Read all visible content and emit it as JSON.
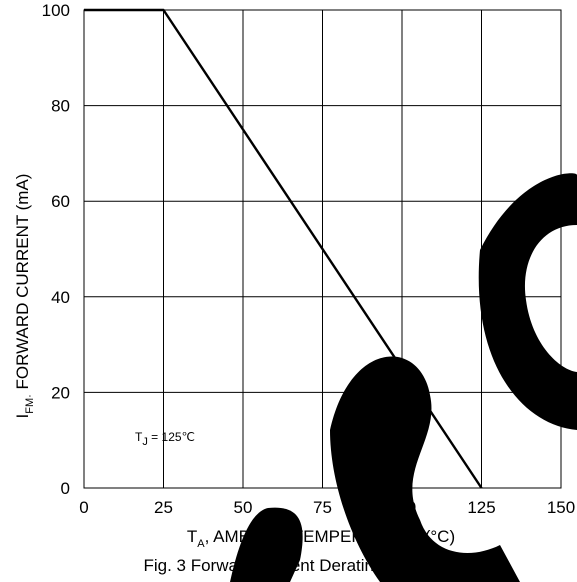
{
  "chart_data": {
    "type": "line",
    "caption": "Fig. 3  Forward Current Derating Curve",
    "xlabel_main": "T",
    "xlabel_sub": "A",
    "xlabel_rest": ",  AMBIENT TEMPERATURE (°C)",
    "ylabel_main": "I",
    "ylabel_sub": "FM·",
    "ylabel_rest": " FORWARD CURRENT (mA)",
    "annotation_main": "T",
    "annotation_sub": "J",
    "annotation_rest": " = 125℃",
    "xlim": [
      0,
      150
    ],
    "ylim": [
      0,
      100
    ],
    "x_ticks": [
      "0",
      "25",
      "50",
      "75",
      "100",
      "125",
      "150"
    ],
    "y_ticks": [
      "0",
      "20",
      "40",
      "60",
      "80",
      "100"
    ],
    "grid": true,
    "series": [
      {
        "x": [
          0,
          25,
          125
        ],
        "y": [
          100,
          100,
          0
        ]
      }
    ],
    "watermark_text": "BSC"
  }
}
